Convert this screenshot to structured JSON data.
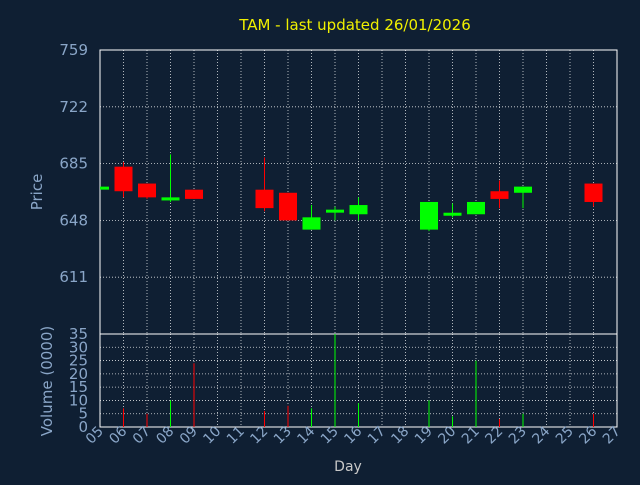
{
  "chart_data": {
    "type": "candlestick",
    "title": "TAM - last updated 26/01/2026",
    "xlabel": "Day",
    "price_axis": {
      "label": "Price",
      "ticks": [
        611,
        648,
        685,
        722,
        759
      ],
      "range": [
        574,
        759
      ]
    },
    "volume_axis": {
      "label": "Volume (0000)",
      "ticks": [
        0,
        5,
        10,
        15,
        20,
        25,
        30,
        35
      ],
      "range": [
        0,
        35
      ]
    },
    "x_ticks": [
      "05",
      "06",
      "07",
      "08",
      "09",
      "10",
      "11",
      "12",
      "13",
      "14",
      "15",
      "16",
      "17",
      "18",
      "19",
      "20",
      "21",
      "22",
      "23",
      "24",
      "25",
      "26",
      "27"
    ],
    "grid": true,
    "colors": {
      "up": "#00ff00",
      "down": "#ff0000",
      "grid": "#ffffff",
      "title": "#f0f000",
      "axis": "#8aa6c8",
      "background": "#0f1f33"
    },
    "candles": [
      {
        "day": "05",
        "open": 670,
        "close": 670,
        "high": 670,
        "low": 670,
        "volume": 0
      },
      {
        "day": "06",
        "open": 683,
        "close": 667,
        "high": 686,
        "low": 663,
        "volume": 7
      },
      {
        "day": "07",
        "open": 672,
        "close": 663,
        "high": 672,
        "low": 662,
        "volume": 5
      },
      {
        "day": "08",
        "open": 661,
        "close": 663,
        "high": 691,
        "low": 660,
        "volume": 10
      },
      {
        "day": "09",
        "open": 668,
        "close": 662,
        "high": 668,
        "low": 662,
        "volume": 24
      },
      {
        "day": "12",
        "open": 668,
        "close": 656,
        "high": 689,
        "low": 654,
        "volume": 6
      },
      {
        "day": "13",
        "open": 666,
        "close": 648,
        "high": 666,
        "low": 648,
        "volume": 8
      },
      {
        "day": "14",
        "open": 642,
        "close": 650,
        "high": 658,
        "low": 642,
        "volume": 7
      },
      {
        "day": "15",
        "open": 654,
        "close": 655,
        "high": 657,
        "low": 648,
        "volume": 35
      },
      {
        "day": "16",
        "open": 652,
        "close": 658,
        "high": 663,
        "low": 648,
        "volume": 9
      },
      {
        "day": "19",
        "open": 642,
        "close": 660,
        "high": 660,
        "low": 641,
        "volume": 10
      },
      {
        "day": "20",
        "open": 652,
        "close": 653,
        "high": 659,
        "low": 650,
        "volume": 4
      },
      {
        "day": "21",
        "open": 652,
        "close": 660,
        "high": 660,
        "low": 652,
        "volume": 25
      },
      {
        "day": "22",
        "open": 667,
        "close": 662,
        "high": 674,
        "low": 656,
        "volume": 3
      },
      {
        "day": "23",
        "open": 666,
        "close": 670,
        "high": 670,
        "low": 656,
        "volume": 5
      },
      {
        "day": "26",
        "open": 672,
        "close": 660,
        "high": 672,
        "low": 657,
        "volume": 5
      }
    ]
  }
}
